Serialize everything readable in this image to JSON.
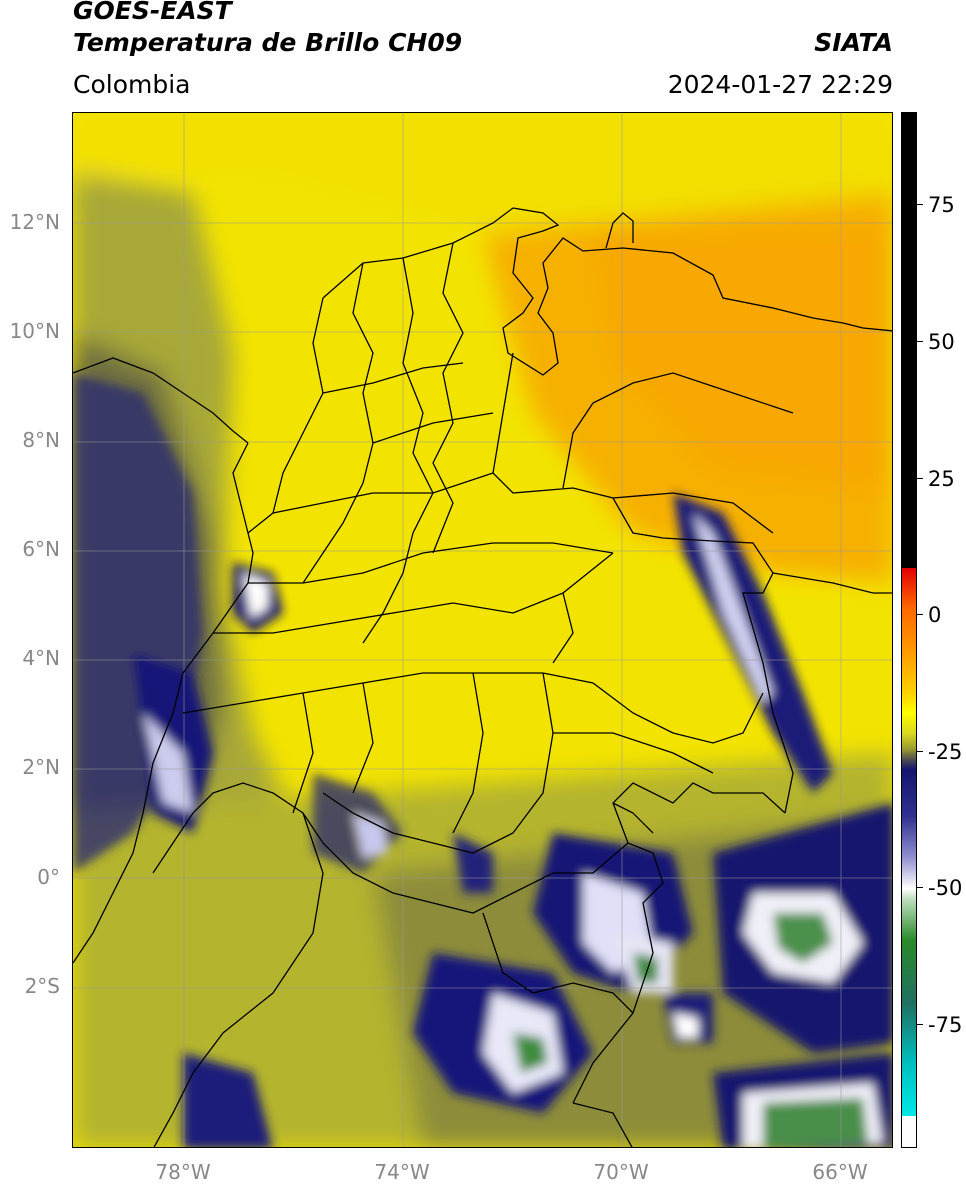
{
  "header": {
    "title_line1": "GOES-EAST",
    "title_line2": "Temperatura de Brillo CH09",
    "organization": "SIATA",
    "region": "Colombia",
    "datetime": "2024-01-27 22:29"
  },
  "map": {
    "lat_labels": [
      "12°N",
      "10°N",
      "8°N",
      "6°N",
      "4°N",
      "2°N",
      "0°",
      "2°S"
    ],
    "lon_labels": [
      "78°W",
      "74°W",
      "70°W",
      "66°W"
    ],
    "colors": {
      "warm_yellow": "#f2e600",
      "orange": "#f8b000",
      "olive": "#b5b52a",
      "dark_olive": "#7a7a3a",
      "navy": "#1a1a7a",
      "white": "#f4f4f4",
      "green": "#3c8a3c",
      "border": "#000000",
      "grid": "#9a9a9a"
    }
  },
  "colorbar": {
    "labels": [
      "75",
      "50",
      "25",
      "0",
      "-25",
      "-50",
      "-75"
    ],
    "colors": [
      "#000000",
      "#e10000",
      "#ff9a00",
      "#ffff00",
      "#9a9a30",
      "#141470",
      "#ffffff",
      "#2a8a2a",
      "#00e0e0",
      "#ffffff"
    ]
  }
}
